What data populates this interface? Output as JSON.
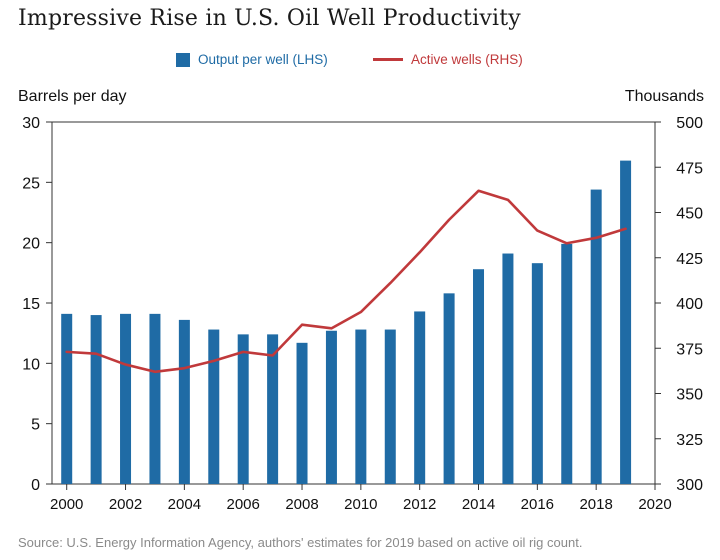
{
  "title": "Impressive Rise in U.S. Oil Well Productivity",
  "source": "Source: U.S. Energy Information Agency, authors' estimates for 2019 based on active oil rig count.",
  "colors": {
    "bars": "#1f6ba5",
    "line": "#c0393b",
    "axis": "#333333"
  },
  "chart_data": {
    "type": "bar",
    "title": "Impressive Rise in U.S. Oil Well Productivity",
    "legend": {
      "placement": "top-center",
      "entries": [
        "Output per well (LHS)",
        "Active wells (RHS)"
      ]
    },
    "ylabel_left": "Barrels per day",
    "ylabel_right": "Thousands",
    "xlim": [
      1999.5,
      2020
    ],
    "ylim_left": [
      0,
      30
    ],
    "ylim_right": [
      300,
      500
    ],
    "x_ticks": [
      "2000",
      "2002",
      "2004",
      "2006",
      "2008",
      "2010",
      "2012",
      "2014",
      "2016",
      "2018",
      "2020"
    ],
    "y_ticks_left": [
      "0",
      "5",
      "10",
      "15",
      "20",
      "25",
      "30"
    ],
    "y_ticks_right": [
      "300",
      "325",
      "350",
      "375",
      "400",
      "425",
      "450",
      "475",
      "500"
    ],
    "grid": false,
    "years": [
      2000,
      2001,
      2002,
      2003,
      2004,
      2005,
      2006,
      2007,
      2008,
      2009,
      2010,
      2011,
      2012,
      2013,
      2014,
      2015,
      2016,
      2017,
      2018,
      2019
    ],
    "series": [
      {
        "name": "Output per well (LHS)",
        "type": "bar",
        "axis": "left",
        "values": [
          14.1,
          14.0,
          14.1,
          14.1,
          13.6,
          12.8,
          12.4,
          12.4,
          11.7,
          12.7,
          12.8,
          12.8,
          14.3,
          15.8,
          17.8,
          19.1,
          18.3,
          19.9,
          24.4,
          26.8
        ]
      },
      {
        "name": "Active wells (RHS)",
        "type": "line",
        "axis": "right",
        "values": [
          373,
          372,
          366,
          362,
          364,
          368,
          373,
          371,
          388,
          386,
          395,
          411,
          428,
          446,
          462,
          457,
          440,
          433,
          436,
          441
        ]
      }
    ]
  }
}
